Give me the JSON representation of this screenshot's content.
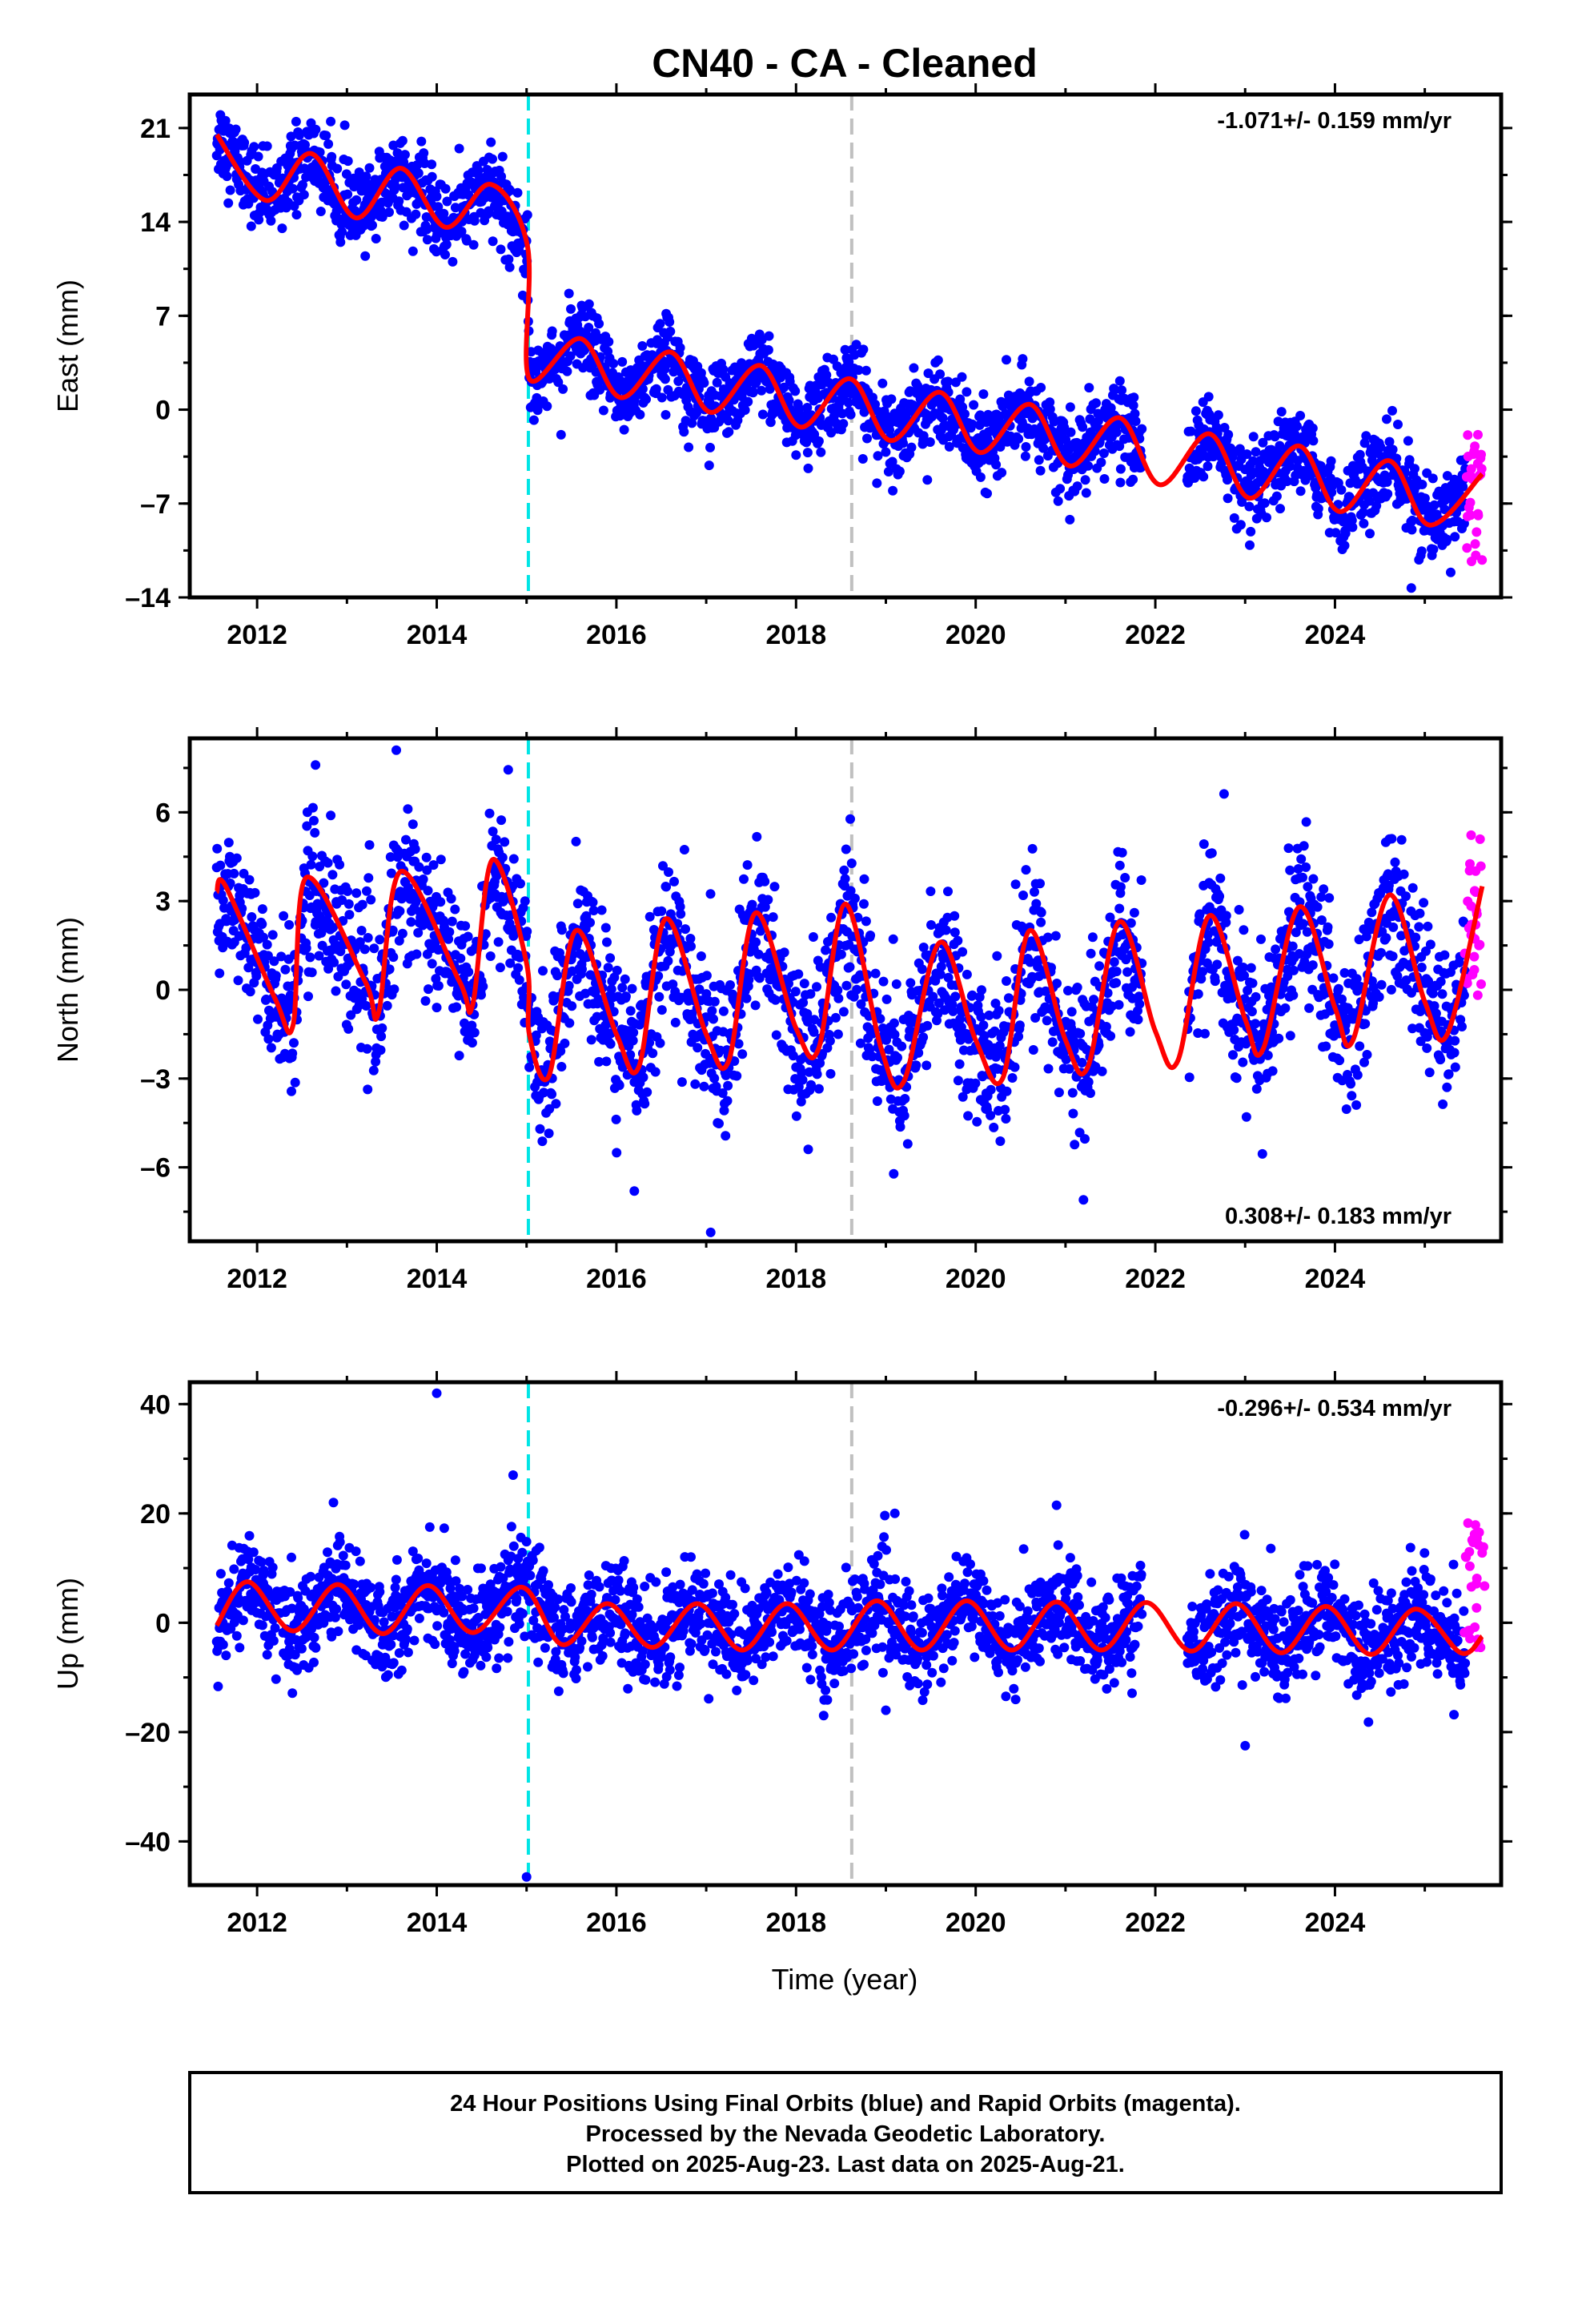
{
  "title": "CN40  - CA - Cleaned",
  "x_axis_label": "Time (year)",
  "footer": {
    "line1": "24 Hour Positions Using Final Orbits (blue) and Rapid Orbits (magenta).",
    "line2": "Processed by the Nevada Geodetic Laboratory.",
    "line3": "Plotted on 2025-Aug-23. Last data on 2025-Aug-21."
  },
  "colors": {
    "final_points": "#0000ff",
    "rapid_points": "#ff00ff",
    "model_line": "#ff0000",
    "equipment_change_line": "#00e5e5",
    "other_event_line": "#c0c0c0"
  },
  "chart_data": [
    {
      "type": "scatter",
      "component": "east",
      "ylabel": "East (mm)",
      "rate_text": "-1.071+/- 0.159 mm/yr",
      "rate_position": "top-right",
      "xlim": [
        2011.25,
        2025.85
      ],
      "ylim": [
        -14,
        23.5
      ],
      "x_ticks": [
        "2012",
        "2014",
        "2016",
        "2018",
        "2020",
        "2022",
        "2024"
      ],
      "y_ticks": [
        "21",
        "14",
        "7",
        "0",
        "-7",
        "-14"
      ],
      "event_lines": [
        {
          "x": 2015.02,
          "kind": "equipment_change",
          "style": "dashed"
        },
        {
          "x": 2018.62,
          "kind": "other_event",
          "style": "dashed"
        }
      ],
      "series": [
        {
          "kind": "final_orbit_points",
          "start": 2011.55,
          "end": 2025.45,
          "offset_at": 2015.02,
          "level_before": [
            21.0,
            16.0
          ],
          "level_after": [
            3.2,
            -8.0
          ],
          "seasonal_amplitude": 1.8,
          "scatter_sd": 1.5,
          "gap": [
            2021.85,
            2022.35
          ],
          "annotated_outliers": [
            [
              2024.85,
              -13.3
            ]
          ]
        },
        {
          "kind": "rapid_orbit_points",
          "start": 2025.46,
          "end": 2025.64,
          "y_range": [
            -11.5,
            -1.3
          ]
        },
        {
          "kind": "model_fit",
          "points": [
            [
              2011.55,
              20.5
            ],
            [
              2012.1,
              15.6
            ],
            [
              2012.6,
              19.1
            ],
            [
              2013.1,
              14.3
            ],
            [
              2013.6,
              18.0
            ],
            [
              2014.1,
              13.6
            ],
            [
              2014.6,
              16.8
            ],
            [
              2015.01,
              12.2
            ],
            [
              2015.03,
              2.3
            ],
            [
              2015.6,
              5.3
            ],
            [
              2016.05,
              0.9
            ],
            [
              2016.6,
              4.3
            ],
            [
              2017.05,
              -0.2
            ],
            [
              2017.6,
              3.3
            ],
            [
              2018.05,
              -1.3
            ],
            [
              2018.6,
              2.3
            ],
            [
              2019.05,
              -2.3
            ],
            [
              2019.6,
              1.3
            ],
            [
              2020.05,
              -3.2
            ],
            [
              2020.6,
              0.4
            ],
            [
              2021.05,
              -4.2
            ],
            [
              2021.6,
              -0.6
            ],
            [
              2022.05,
              -5.6
            ],
            [
              2022.6,
              -1.8
            ],
            [
              2023.05,
              -6.6
            ],
            [
              2023.6,
              -2.7
            ],
            [
              2024.05,
              -7.6
            ],
            [
              2024.6,
              -3.8
            ],
            [
              2025.05,
              -8.6
            ],
            [
              2025.64,
              -4.8
            ]
          ]
        }
      ]
    },
    {
      "type": "scatter",
      "component": "north",
      "ylabel": "North (mm)",
      "rate_text": "0.308+/- 0.183 mm/yr",
      "rate_position": "bottom-right",
      "xlim": [
        2011.25,
        2025.85
      ],
      "ylim": [
        -8.5,
        8.5
      ],
      "x_ticks": [
        "2012",
        "2014",
        "2016",
        "2018",
        "2020",
        "2022",
        "2024"
      ],
      "y_ticks": [
        "6",
        "3",
        "0",
        "-3",
        "-6"
      ],
      "event_lines": [
        {
          "x": 2015.02,
          "kind": "equipment_change",
          "style": "dashed"
        },
        {
          "x": 2018.62,
          "kind": "other_event",
          "style": "dashed"
        }
      ],
      "series": [
        {
          "kind": "final_orbit_points",
          "start": 2011.55,
          "end": 2025.45,
          "offset_at": 2015.02,
          "level_before": [
            0.9,
            0.9
          ],
          "level_after": [
            -0.3,
            0.2
          ],
          "seasonal_amplitude": 2.8,
          "scatter_sd": 1.3,
          "gap": [
            2021.85,
            2022.35
          ],
          "annotated_outliers": [
            [
              2013.55,
              8.1
            ],
            [
              2012.65,
              7.6
            ],
            [
              2017.05,
              -8.2
            ],
            [
              2016.2,
              -6.8
            ],
            [
              2021.2,
              -7.1
            ]
          ]
        },
        {
          "kind": "rapid_orbit_points",
          "start": 2025.46,
          "end": 2025.64,
          "y_range": [
            -0.5,
            5.3
          ]
        },
        {
          "kind": "model_fit",
          "points": [
            [
              2011.55,
              3.3
            ],
            [
              2011.65,
              3.5
            ],
            [
              2012.2,
              -0.3
            ],
            [
              2012.4,
              -1.2
            ],
            [
              2012.55,
              3.8
            ],
            [
              2013.2,
              0.3
            ],
            [
              2013.35,
              -0.8
            ],
            [
              2013.6,
              4.0
            ],
            [
              2014.25,
              0.3
            ],
            [
              2014.4,
              -0.5
            ],
            [
              2014.62,
              4.4
            ],
            [
              2015.0,
              0.9
            ],
            [
              2015.03,
              -1.5
            ],
            [
              2015.25,
              -2.9
            ],
            [
              2015.55,
              2.0
            ],
            [
              2016.0,
              -1.5
            ],
            [
              2016.25,
              -2.6
            ],
            [
              2016.55,
              2.4
            ],
            [
              2017.0,
              -1.5
            ],
            [
              2017.25,
              -2.4
            ],
            [
              2017.55,
              2.6
            ],
            [
              2018.0,
              -1.3
            ],
            [
              2018.25,
              -2.0
            ],
            [
              2018.55,
              2.9
            ],
            [
              2018.95,
              -2.0
            ],
            [
              2019.2,
              -3.1
            ],
            [
              2019.6,
              1.6
            ],
            [
              2020.0,
              -1.7
            ],
            [
              2020.3,
              -3.0
            ],
            [
              2020.6,
              2.0
            ],
            [
              2021.0,
              -1.7
            ],
            [
              2021.25,
              -2.6
            ],
            [
              2021.6,
              2.3
            ],
            [
              2022.0,
              -1.4
            ],
            [
              2022.25,
              -2.4
            ],
            [
              2022.6,
              2.5
            ],
            [
              2023.0,
              -1.0
            ],
            [
              2023.2,
              -2.0
            ],
            [
              2023.6,
              2.8
            ],
            [
              2024.0,
              -0.6
            ],
            [
              2024.2,
              -1.7
            ],
            [
              2024.6,
              3.2
            ],
            [
              2025.0,
              -0.4
            ],
            [
              2025.25,
              -1.5
            ],
            [
              2025.64,
              3.5
            ]
          ]
        }
      ]
    },
    {
      "type": "scatter",
      "component": "up",
      "ylabel": "Up (mm)",
      "rate_text": "-0.296+/- 0.534 mm/yr",
      "rate_position": "top-right",
      "xlim": [
        2011.25,
        2025.85
      ],
      "ylim": [
        -48,
        44
      ],
      "x_ticks": [
        "2012",
        "2014",
        "2016",
        "2018",
        "2020",
        "2022",
        "2024"
      ],
      "y_ticks": [
        "40",
        "20",
        "0",
        "-20",
        "-40"
      ],
      "event_lines": [
        {
          "x": 2015.02,
          "kind": "equipment_change",
          "style": "dashed"
        },
        {
          "x": 2018.62,
          "kind": "other_event",
          "style": "dashed"
        }
      ],
      "series": [
        {
          "kind": "final_orbit_points",
          "start": 2011.55,
          "end": 2025.45,
          "offset_at": 2015.02,
          "level_before": [
            2.5,
            2.5
          ],
          "level_after": [
            -0.5,
            -1.0
          ],
          "seasonal_amplitude": 4.5,
          "scatter_sd": 4.5,
          "gap": [
            2021.85,
            2022.35
          ],
          "annotated_outliers": [
            [
              2014.0,
              42.0
            ],
            [
              2015.0,
              -46.5
            ],
            [
              2014.85,
              27.0
            ],
            [
              2012.85,
              22.0
            ],
            [
              2020.9,
              21.5
            ],
            [
              2019.1,
              20.0
            ],
            [
              2023.0,
              -22.5
            ],
            [
              2019.0,
              -16.0
            ]
          ]
        },
        {
          "kind": "rapid_orbit_points",
          "start": 2025.46,
          "end": 2025.64,
          "y_range": [
            -5.0,
            19.0
          ]
        },
        {
          "kind": "model_fit",
          "points": [
            [
              2011.55,
              -0.5
            ],
            [
              2011.9,
              7.5
            ],
            [
              2012.4,
              -1.5
            ],
            [
              2012.9,
              7.0
            ],
            [
              2013.4,
              -2.0
            ],
            [
              2013.9,
              6.8
            ],
            [
              2014.4,
              -1.8
            ],
            [
              2014.95,
              6.5
            ],
            [
              2015.4,
              -4.0
            ],
            [
              2015.9,
              3.5
            ],
            [
              2016.4,
              -4.5
            ],
            [
              2016.9,
              3.5
            ],
            [
              2017.4,
              -5.0
            ],
            [
              2017.9,
              3.5
            ],
            [
              2018.4,
              -5.0
            ],
            [
              2018.9,
              4.0
            ],
            [
              2019.4,
              -5.0
            ],
            [
              2019.9,
              4.0
            ],
            [
              2020.4,
              -5.0
            ],
            [
              2020.9,
              3.8
            ],
            [
              2021.4,
              -5.0
            ],
            [
              2021.9,
              3.7
            ],
            [
              2022.4,
              -5.2
            ],
            [
              2022.9,
              3.5
            ],
            [
              2023.4,
              -5.5
            ],
            [
              2023.9,
              3.0
            ],
            [
              2024.4,
              -5.8
            ],
            [
              2024.9,
              2.5
            ],
            [
              2025.4,
              -5.5
            ],
            [
              2025.64,
              -2.5
            ]
          ]
        }
      ]
    }
  ]
}
